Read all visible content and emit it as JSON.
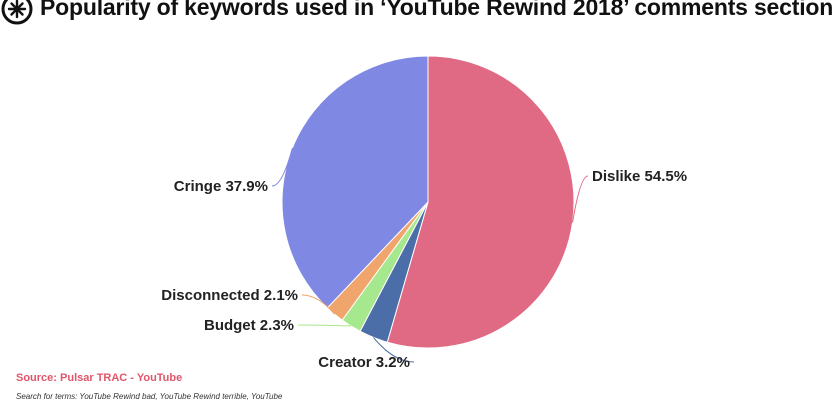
{
  "title": "Popularity of keywords used in ‘YouTube Rewind 2018’ comments section",
  "logo_icon": "pulsar-spark-icon",
  "source": "Source: Pulsar TRAC - YouTube",
  "footnote": "Search for terms: YouTube Rewind bad, YouTube Rewind terrible, YouTube",
  "chart_data": {
    "type": "pie",
    "title": "Popularity of keywords used in ‘YouTube Rewind 2018’ comments section",
    "start": "12 o'clock, clockwise",
    "slices": [
      {
        "label": "Dislike 54.5%",
        "value": 54.5,
        "color": "#e06a84"
      },
      {
        "label": "Creator 3.2%",
        "value": 3.2,
        "color": "#4b6ea8"
      },
      {
        "label": "Budget 2.3%",
        "value": 2.3,
        "color": "#a6e88d"
      },
      {
        "label": "Disconnected 2.1%",
        "value": 2.1,
        "color": "#f0a56c"
      },
      {
        "label": "Cringe 37.9%",
        "value": 37.9,
        "color": "#7f88e3"
      }
    ]
  }
}
